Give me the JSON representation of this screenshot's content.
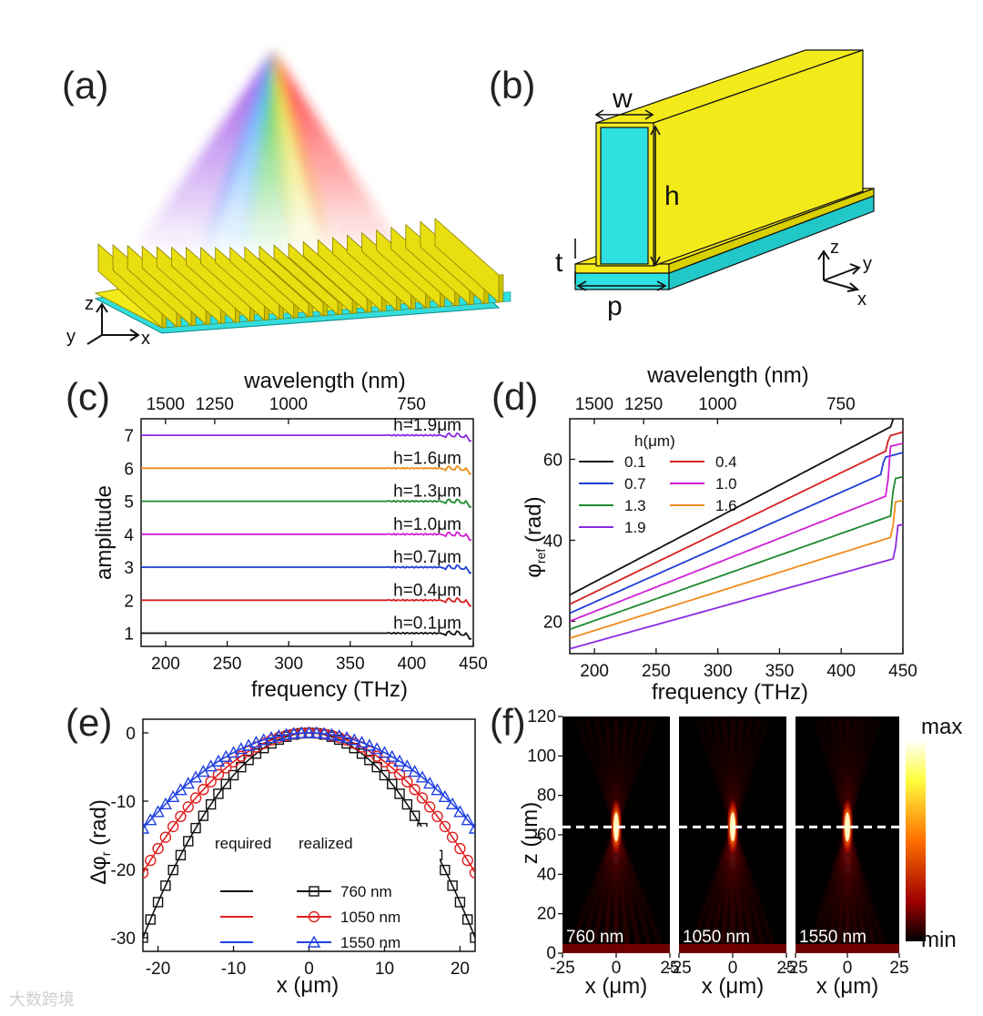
{
  "panels": {
    "a": "(a)",
    "b": "(b)",
    "c": "(c)",
    "d": "(d)",
    "e": "(e)",
    "f": "(f)"
  },
  "geometry": {
    "w": "w",
    "h": "h",
    "t": "t",
    "p": "p",
    "x": "x",
    "y": "y",
    "z": "z"
  },
  "colors": {
    "h0_1": "#111111",
    "h0_4": "#d62020",
    "h0_7": "#1f3fd6",
    "h1_0": "#d11fd6",
    "h1_3": "#1e8a2e",
    "h1_6": "#f08c1a",
    "h1_9": "#8a2be2"
  },
  "watermark": "大数跨境",
  "chart_data": [
    {
      "id": "c",
      "type": "line",
      "title_top": "wavelength (nm)",
      "top_ticks": [
        "1500",
        "1250",
        "1000",
        "750"
      ],
      "top_tick_nm": [
        1500,
        1250,
        1000,
        750
      ],
      "xlabel": "frequency (THz)",
      "ylabel": "amplitude",
      "xlim": [
        180,
        450
      ],
      "ylim": [
        0.6,
        7.5
      ],
      "xticks": [
        "200",
        "250",
        "300",
        "350",
        "400",
        "450"
      ],
      "yticks": [
        "1",
        "2",
        "3",
        "4",
        "5",
        "6",
        "7"
      ],
      "series": [
        {
          "name": "h=0.1μm",
          "baseline": 1
        },
        {
          "name": "h=0.4μm",
          "baseline": 2
        },
        {
          "name": "h=0.7μm",
          "baseline": 3
        },
        {
          "name": "h=1.0μm",
          "baseline": 4
        },
        {
          "name": "h=1.3μm",
          "baseline": 5
        },
        {
          "name": "h=1.6μm",
          "baseline": 6
        },
        {
          "name": "h=1.9μm",
          "baseline": 7
        }
      ]
    },
    {
      "id": "d",
      "type": "line",
      "title_top": "wavelength (nm)",
      "top_ticks": [
        "1500",
        "1250",
        "1000",
        "750"
      ],
      "top_tick_nm": [
        1500,
        1250,
        1000,
        750
      ],
      "xlabel": "frequency (THz)",
      "ylabel": "φref (rad)",
      "ylabel_main": "φ",
      "ylabel_sub": "ref",
      "ylabel_rest": " (rad)",
      "xlim": [
        180,
        450
      ],
      "ylim": [
        12,
        70
      ],
      "xticks": [
        "200",
        "250",
        "300",
        "350",
        "400",
        "450"
      ],
      "yticks": [
        "20",
        "40",
        "60"
      ],
      "legend_title": "h(μm)",
      "legend_position": "top-left",
      "series": [
        {
          "name": "0.1",
          "start": 26.5,
          "end": 68.0,
          "jump_f": 440,
          "jump": 2.5
        },
        {
          "name": "0.4",
          "start": 24.2,
          "end": 62.0,
          "jump_f": 436,
          "jump": 3.5
        },
        {
          "name": "0.7",
          "start": 22.0,
          "end": 56.2,
          "jump_f": 432,
          "jump": 4.0
        },
        {
          "name": "1.0",
          "start": 20.0,
          "end": 51.0,
          "jump_f": 437,
          "jump": 12.0
        },
        {
          "name": "1.3",
          "start": 18.0,
          "end": 46.0,
          "jump_f": 440,
          "jump": 9.0
        },
        {
          "name": "1.6",
          "start": 15.8,
          "end": 40.8,
          "jump_f": 441,
          "jump": 8.5
        },
        {
          "name": "1.9",
          "start": 13.2,
          "end": 35.5,
          "jump_f": 443,
          "jump": 8.0
        }
      ]
    },
    {
      "id": "e",
      "type": "scatter",
      "xlabel": "x (μm)",
      "ylabel": "Δφr (rad)",
      "ylabel_main": "Δφ",
      "ylabel_sub": "r",
      "ylabel_rest": " (rad)",
      "xlim": [
        -22,
        22
      ],
      "ylim": [
        -32,
        2
      ],
      "xticks": [
        "-20",
        "-10",
        "0",
        "10",
        "20"
      ],
      "yticks": [
        "0",
        "-10",
        "-20",
        "-30"
      ],
      "legend_header_required": "required",
      "legend_header_realized": "realized",
      "series": [
        {
          "name": "760 nm",
          "marker": "square",
          "color": "#111111",
          "min": -30.0
        },
        {
          "name": "1050 nm",
          "marker": "circle",
          "color": "#e02020",
          "min": -20.5
        },
        {
          "name": "1550 nm",
          "marker": "triangle",
          "color": "#2040e0",
          "min": -14.0
        }
      ]
    },
    {
      "id": "f",
      "type": "heatmap",
      "xlabel": "x (μm)",
      "ylabel": "z (μm)",
      "xlim": [
        -25,
        25
      ],
      "ylim": [
        0,
        120
      ],
      "xticks": [
        "-25",
        "0",
        "25"
      ],
      "yticks": [
        "0",
        "20",
        "40",
        "60",
        "80",
        "100",
        "120"
      ],
      "focal_z": 64,
      "colorbar_max": "max",
      "colorbar_min": "min",
      "maps": [
        "760 nm",
        "1050 nm",
        "1550 nm"
      ]
    }
  ]
}
